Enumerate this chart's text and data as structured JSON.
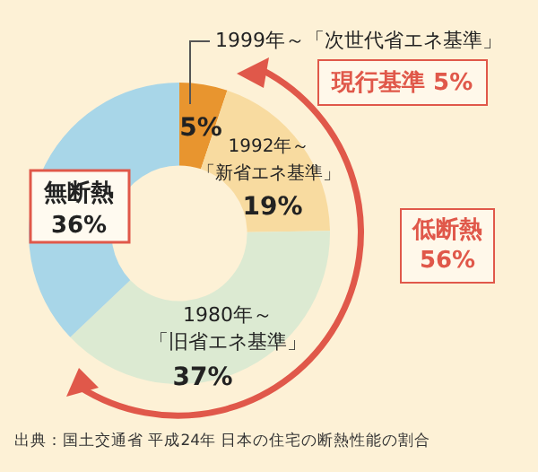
{
  "chart_data": {
    "type": "donut",
    "categories": [
      "1999年～「次世代省エネ基準」",
      "1992年～「新省エネ基準」",
      "1980年～「旧省エネ基準」",
      "無断熱"
    ],
    "values": [
      5,
      19,
      37,
      36
    ],
    "colors": [
      "#e8952f",
      "#f8dba0",
      "#dcead2",
      "#a8d6e8"
    ],
    "value_labels": [
      "5%",
      "19%",
      "37%",
      "36%"
    ],
    "legend": false,
    "annotations": [
      "現行基準 5%",
      "低断熱 56%",
      "出典：国土交通省 平成24年 日本の住宅の断熱性能の割合"
    ]
  }
}
